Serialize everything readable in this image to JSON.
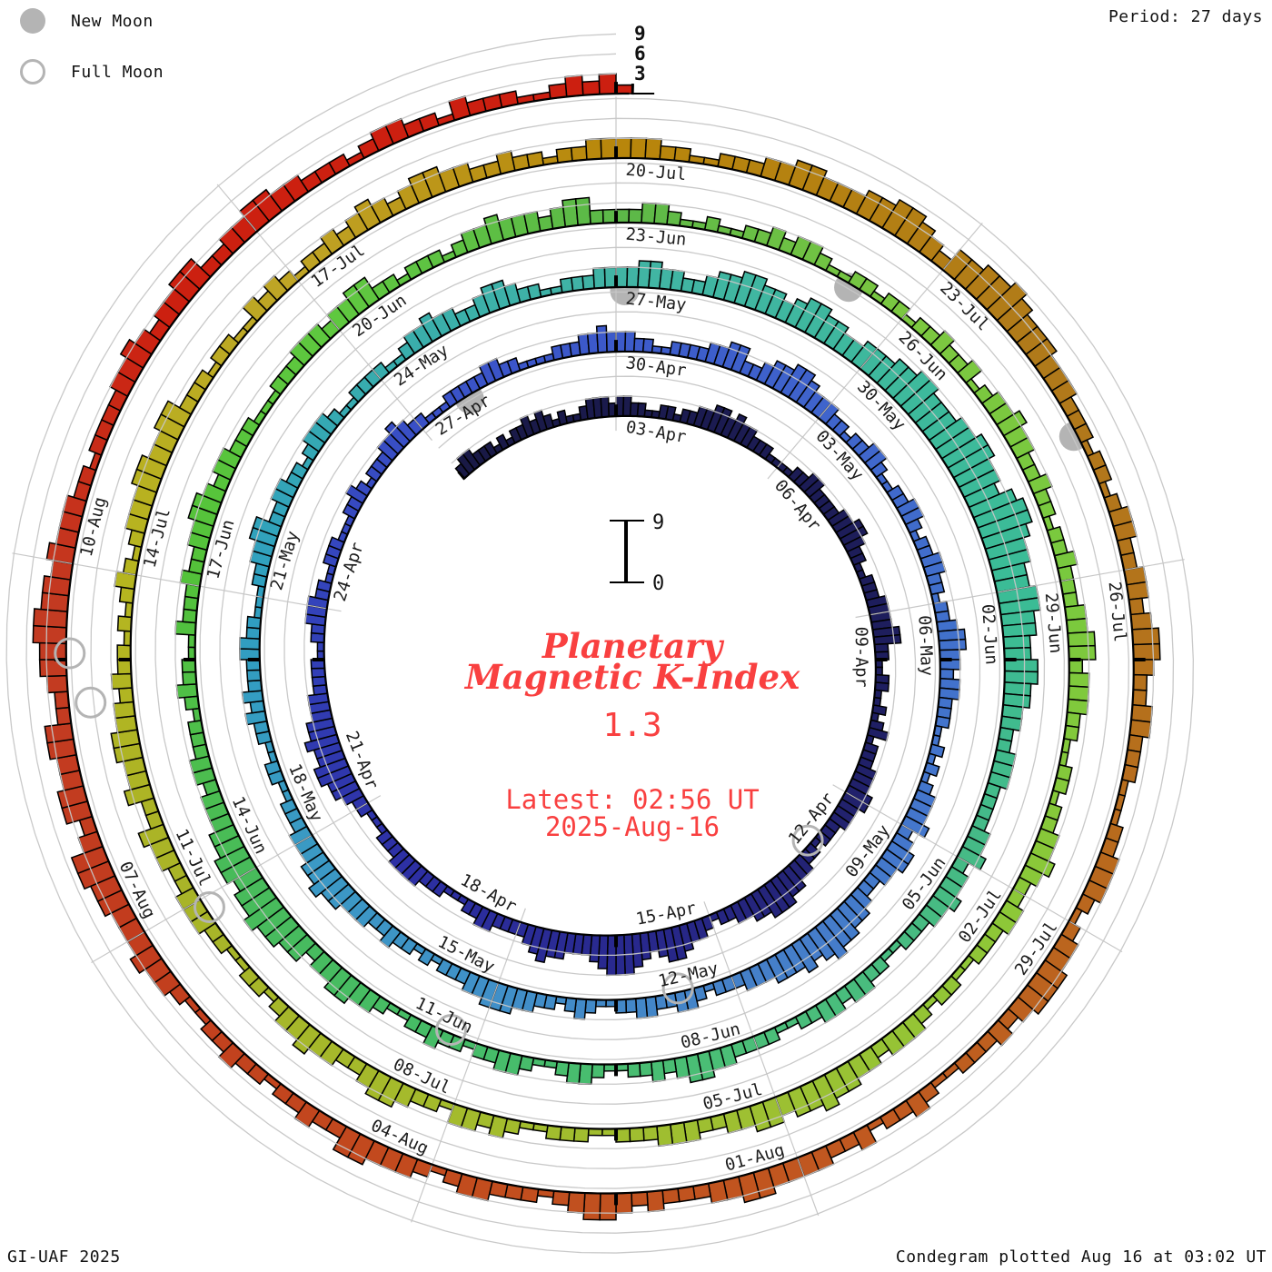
{
  "legend": {
    "new_moon": "New Moon",
    "full_moon": "Full Moon"
  },
  "header": {
    "period_label": "Period: 27 days"
  },
  "center": {
    "title_line1": "Planetary",
    "title_line2": "Magnetic K-Index",
    "current_value": "1.3",
    "latest_line1": "Latest: 02:56 UT",
    "latest_line2": "2025-Aug-16"
  },
  "scale_bar": {
    "top_label": "9",
    "bottom_label": "0"
  },
  "outer_ticks": [
    "9",
    "6",
    "3"
  ],
  "footer": {
    "left": "GI-UAF 2025",
    "right": "Condegram plotted Aug 16 at 03:02 UT"
  },
  "colors": {
    "accent_red": "#f94040",
    "gridline_gray": "#c6c6c6",
    "moon_gray": "#b4b4b4",
    "bar_outline": "#000000",
    "label_color": "#1c1c1c"
  },
  "chart_data": {
    "type": "polar_spiral_histogram",
    "title": "Planetary Magnetic K-Index",
    "subtitle": "Condegram",
    "period_days": 27,
    "interval_hours": 3,
    "value_range": [
      0,
      9
    ],
    "grid_levels": [
      3,
      6,
      9
    ],
    "start_date": "2025-03-31T00:00Z",
    "end_date": "2025-08-16T03:00Z",
    "latest_value": 1.3,
    "legend_position": "top-left",
    "grid": "on",
    "date_labels": [
      {
        "label": "03-Apr",
        "day": 3
      },
      {
        "label": "06-Apr",
        "day": 6
      },
      {
        "label": "09-Apr",
        "day": 9
      },
      {
        "label": "12-Apr",
        "day": 12
      },
      {
        "label": "15-Apr",
        "day": 15
      },
      {
        "label": "18-Apr",
        "day": 18
      },
      {
        "label": "21-Apr",
        "day": 21
      },
      {
        "label": "24-Apr",
        "day": 24
      },
      {
        "label": "27-Apr",
        "day": 27
      },
      {
        "label": "30-Apr",
        "day": 30
      },
      {
        "label": "03-May",
        "day": 33
      },
      {
        "label": "06-May",
        "day": 36
      },
      {
        "label": "09-May",
        "day": 39
      },
      {
        "label": "12-May",
        "day": 42
      },
      {
        "label": "15-May",
        "day": 45
      },
      {
        "label": "18-May",
        "day": 48
      },
      {
        "label": "21-May",
        "day": 51
      },
      {
        "label": "24-May",
        "day": 54
      },
      {
        "label": "27-May",
        "day": 57
      },
      {
        "label": "30-May",
        "day": 60
      },
      {
        "label": "02-Jun",
        "day": 63
      },
      {
        "label": "05-Jun",
        "day": 66
      },
      {
        "label": "08-Jun",
        "day": 69
      },
      {
        "label": "11-Jun",
        "day": 72
      },
      {
        "label": "14-Jun",
        "day": 75
      },
      {
        "label": "17-Jun",
        "day": 78
      },
      {
        "label": "20-Jun",
        "day": 81
      },
      {
        "label": "23-Jun",
        "day": 84
      },
      {
        "label": "26-Jun",
        "day": 87
      },
      {
        "label": "29-Jun",
        "day": 90
      },
      {
        "label": "02-Jul",
        "day": 93
      },
      {
        "label": "05-Jul",
        "day": 96
      },
      {
        "label": "08-Jul",
        "day": 99
      },
      {
        "label": "11-Jul",
        "day": 102
      },
      {
        "label": "14-Jul",
        "day": 105
      },
      {
        "label": "17-Jul",
        "day": 108
      },
      {
        "label": "20-Jul",
        "day": 111
      },
      {
        "label": "23-Jul",
        "day": 114
      },
      {
        "label": "26-Jul",
        "day": 117
      },
      {
        "label": "29-Jul",
        "day": 120
      },
      {
        "label": "01-Aug",
        "day": 123
      },
      {
        "label": "04-Aug",
        "day": 126
      },
      {
        "label": "07-Aug",
        "day": 129
      },
      {
        "label": "10-Aug",
        "day": 132
      }
    ],
    "moons": [
      {
        "type": "full",
        "date": "2025-04-13",
        "day": 13.0
      },
      {
        "type": "new",
        "date": "2025-04-27",
        "day": 27.8
      },
      {
        "type": "full",
        "date": "2025-05-12",
        "day": 42.7
      },
      {
        "type": "new",
        "date": "2025-05-27",
        "day": 57.1
      },
      {
        "type": "full",
        "date": "2025-06-11",
        "day": 72.3
      },
      {
        "type": "new",
        "date": "2025-06-25",
        "day": 86.4
      },
      {
        "type": "full",
        "date": "2025-07-10",
        "day": 101.9
      },
      {
        "type": "new",
        "date": "2025-07-24",
        "day": 115.8
      },
      {
        "type": "full",
        "date": "2025-08-09",
        "day": 131.3
      },
      {
        "type": "full",
        "date": "2025-08-09",
        "day": 130.9,
        "dr": -20
      }
    ],
    "colormap_stops": [
      [
        0,
        "#191945"
      ],
      [
        10,
        "#1e1e5f"
      ],
      [
        13,
        "#232373"
      ],
      [
        16,
        "#28288c"
      ],
      [
        20,
        "#2d30a5"
      ],
      [
        24,
        "#3343bb"
      ],
      [
        27.5,
        "#3a52c8"
      ],
      [
        33,
        "#3f64cc"
      ],
      [
        36,
        "#4170cc"
      ],
      [
        39,
        "#4477cc"
      ],
      [
        42,
        "#4581c8"
      ],
      [
        45,
        "#4090c8"
      ],
      [
        48,
        "#3a9ac4"
      ],
      [
        51,
        "#2f9fc0"
      ],
      [
        54,
        "#38adad"
      ],
      [
        57,
        "#41b4a4"
      ],
      [
        60,
        "#3eb89d"
      ],
      [
        63,
        "#3bbc96"
      ],
      [
        66,
        "#46ba85"
      ],
      [
        69,
        "#4bbe78"
      ],
      [
        72,
        "#46bc68"
      ],
      [
        75,
        "#48bb5a"
      ],
      [
        78,
        "#53c23a"
      ],
      [
        81,
        "#5fc83f"
      ],
      [
        84,
        "#5cb848"
      ],
      [
        87,
        "#7cc840"
      ],
      [
        90,
        "#79c93e"
      ],
      [
        93,
        "#8cc838"
      ],
      [
        96,
        "#9dc032"
      ],
      [
        99,
        "#a4bb2c"
      ],
      [
        102,
        "#a8b428"
      ],
      [
        105,
        "#b6b51f"
      ],
      [
        108,
        "#bfa425"
      ],
      [
        111,
        "#b8860b"
      ],
      [
        115,
        "#b07a1a"
      ],
      [
        118,
        "#b5711c"
      ],
      [
        122,
        "#c05a20"
      ],
      [
        126,
        "#c24b1e"
      ],
      [
        129,
        "#c23c1e"
      ],
      [
        131.5,
        "#c33b22"
      ],
      [
        134,
        "#cc2010"
      ],
      [
        138.2,
        "#cc1f10"
      ]
    ],
    "k_index_3h_by_day": {
      "start_date": "2025-03-31",
      "note": "one string per UT day, one digit per 3-hour Kp interval (0-9); last partial day is the 00-03 UT interval of 2025-Aug-16",
      "days": [
        "23322212",
        "12232321",
        "21123332",
        "33221122",
        "12233443",
        "43322211",
        "11223322",
        "22334432",
        "21122233",
        "33442211",
        "22112123",
        "12223334",
        "43332221",
        "22334455",
        "54433221",
        "23345543",
        "45666543",
        "33445432",
        "22233221",
        "11222333",
        "32221112",
        "23445544",
        "54433322",
        "22112233",
        "32211222",
        "11122321",
        "22233432",
        "21112222",
        "23322111",
        "12223343",
        "33221122",
        "22334422",
        "34455433",
        "32212233",
        "21122332",
        "12233221",
        "22344332",
        "33222112",
        "12123334",
        "23443322",
        "34455654",
        "54443332",
        "22123322",
        "33221123",
        "21223344",
        "43322212",
        "12232233",
        "34454433",
        "32221122",
        "11223232",
        "22332211",
        "12233442",
        "23322123",
        "33211222",
        "21123343",
        "32234432",
        "21122233",
        "33443322",
        "34455443",
        "45544334",
        "44556655",
        "56677665",
        "78876655",
        "66554455",
        "44332233",
        "32222334",
        "23343322",
        "21122332",
        "33221122",
        "22334432",
        "32211233",
        "21123322",
        "12232211",
        "23344332",
        "44556554",
        "55443332",
        "33222123",
        "22113222",
        "32233443",
        "23322211",
        "12223332",
        "33442212",
        "22123343",
        "33234422",
        "22332112",
        "11223233",
        "21122122",
        "12232231",
        "23343322",
        "32212232",
        "22334423",
        "33221122",
        "12233432",
        "23322211",
        "22123332",
        "33445443",
        "44332233",
        "32221122",
        "21123233",
        "12234432",
        "23343321",
        "22112233",
        "32233422",
        "43344332",
        "32212123",
        "21233344",
        "33442221",
        "22113232",
        "12232343",
        "23443322",
        "32212233",
        "33322112",
        "22334433",
        "34455432",
        "44556544",
        "43332221",
        "22123322",
        "33234432",
        "23322211",
        "12233321",
        "23344432",
        "32221123",
        "22132233",
        "33443322",
        "23234432",
        "12223321",
        "23334422",
        "32212232",
        "21123343",
        "33445532",
        "44334422",
        "34455443",
        "43332212",
        "22233432",
        "33442233",
        "44332221",
        "23322132",
        "22112323",
        "1"
      ]
    }
  }
}
